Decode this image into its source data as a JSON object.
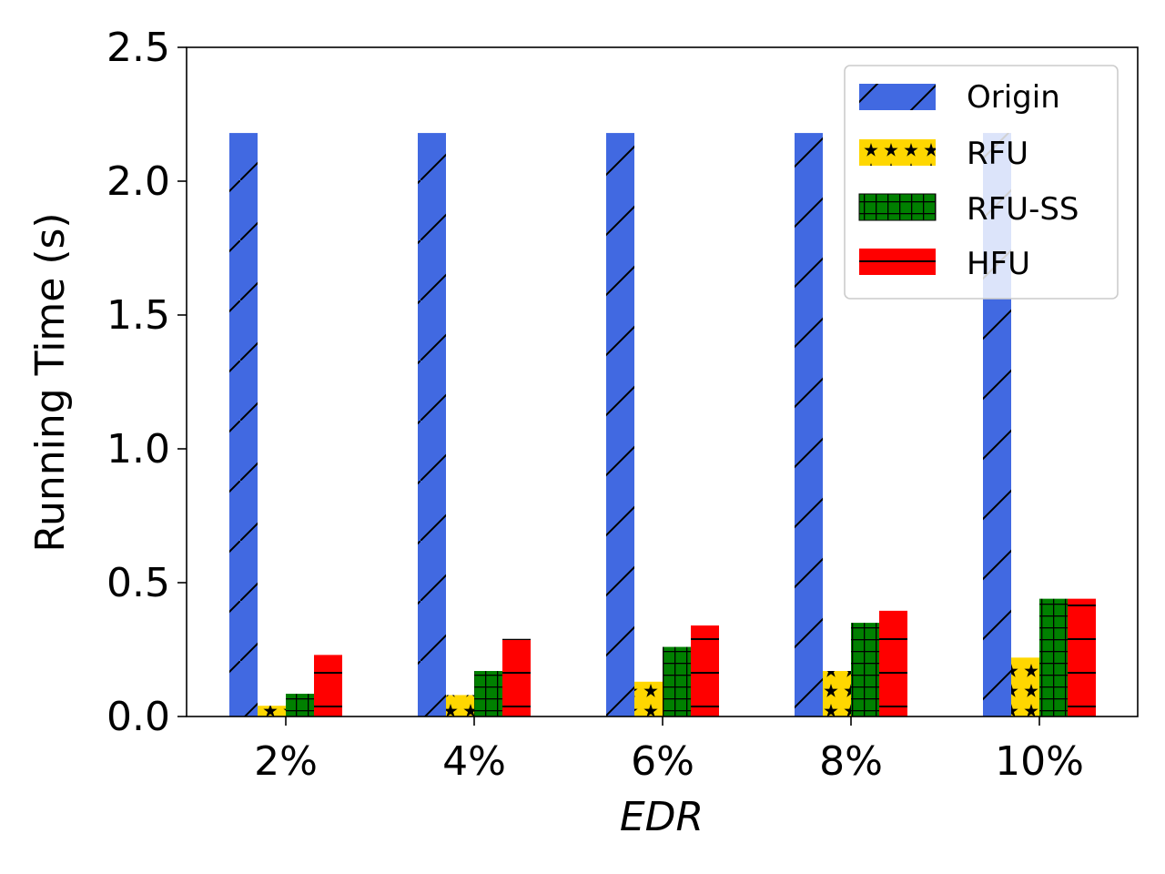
{
  "chart_data": {
    "type": "bar",
    "xlabel": "EDR",
    "ylabel": "Running Time (s)",
    "ylim": [
      0,
      2.5
    ],
    "yticks": [
      "0.0",
      "0.5",
      "1.0",
      "1.5",
      "2.0",
      "2.5"
    ],
    "categories": [
      "2%",
      "4%",
      "6%",
      "8%",
      "10%"
    ],
    "legend_position": "top-right",
    "grid": false,
    "series": [
      {
        "name": "Origin",
        "color": "#4169E1",
        "hatch": "diagonal",
        "values": [
          2.18,
          2.18,
          2.18,
          2.18,
          2.18
        ]
      },
      {
        "name": "RFU",
        "color": "#FFD700",
        "hatch": "stars",
        "values": [
          0.04,
          0.08,
          0.13,
          0.17,
          0.22
        ]
      },
      {
        "name": "RFU-SS",
        "color": "#008000",
        "hatch": "grid",
        "values": [
          0.085,
          0.17,
          0.26,
          0.35,
          0.44
        ]
      },
      {
        "name": "HFU",
        "color": "#FF0000",
        "hatch": "horizontal",
        "values": [
          0.23,
          0.29,
          0.34,
          0.395,
          0.44
        ]
      }
    ]
  }
}
